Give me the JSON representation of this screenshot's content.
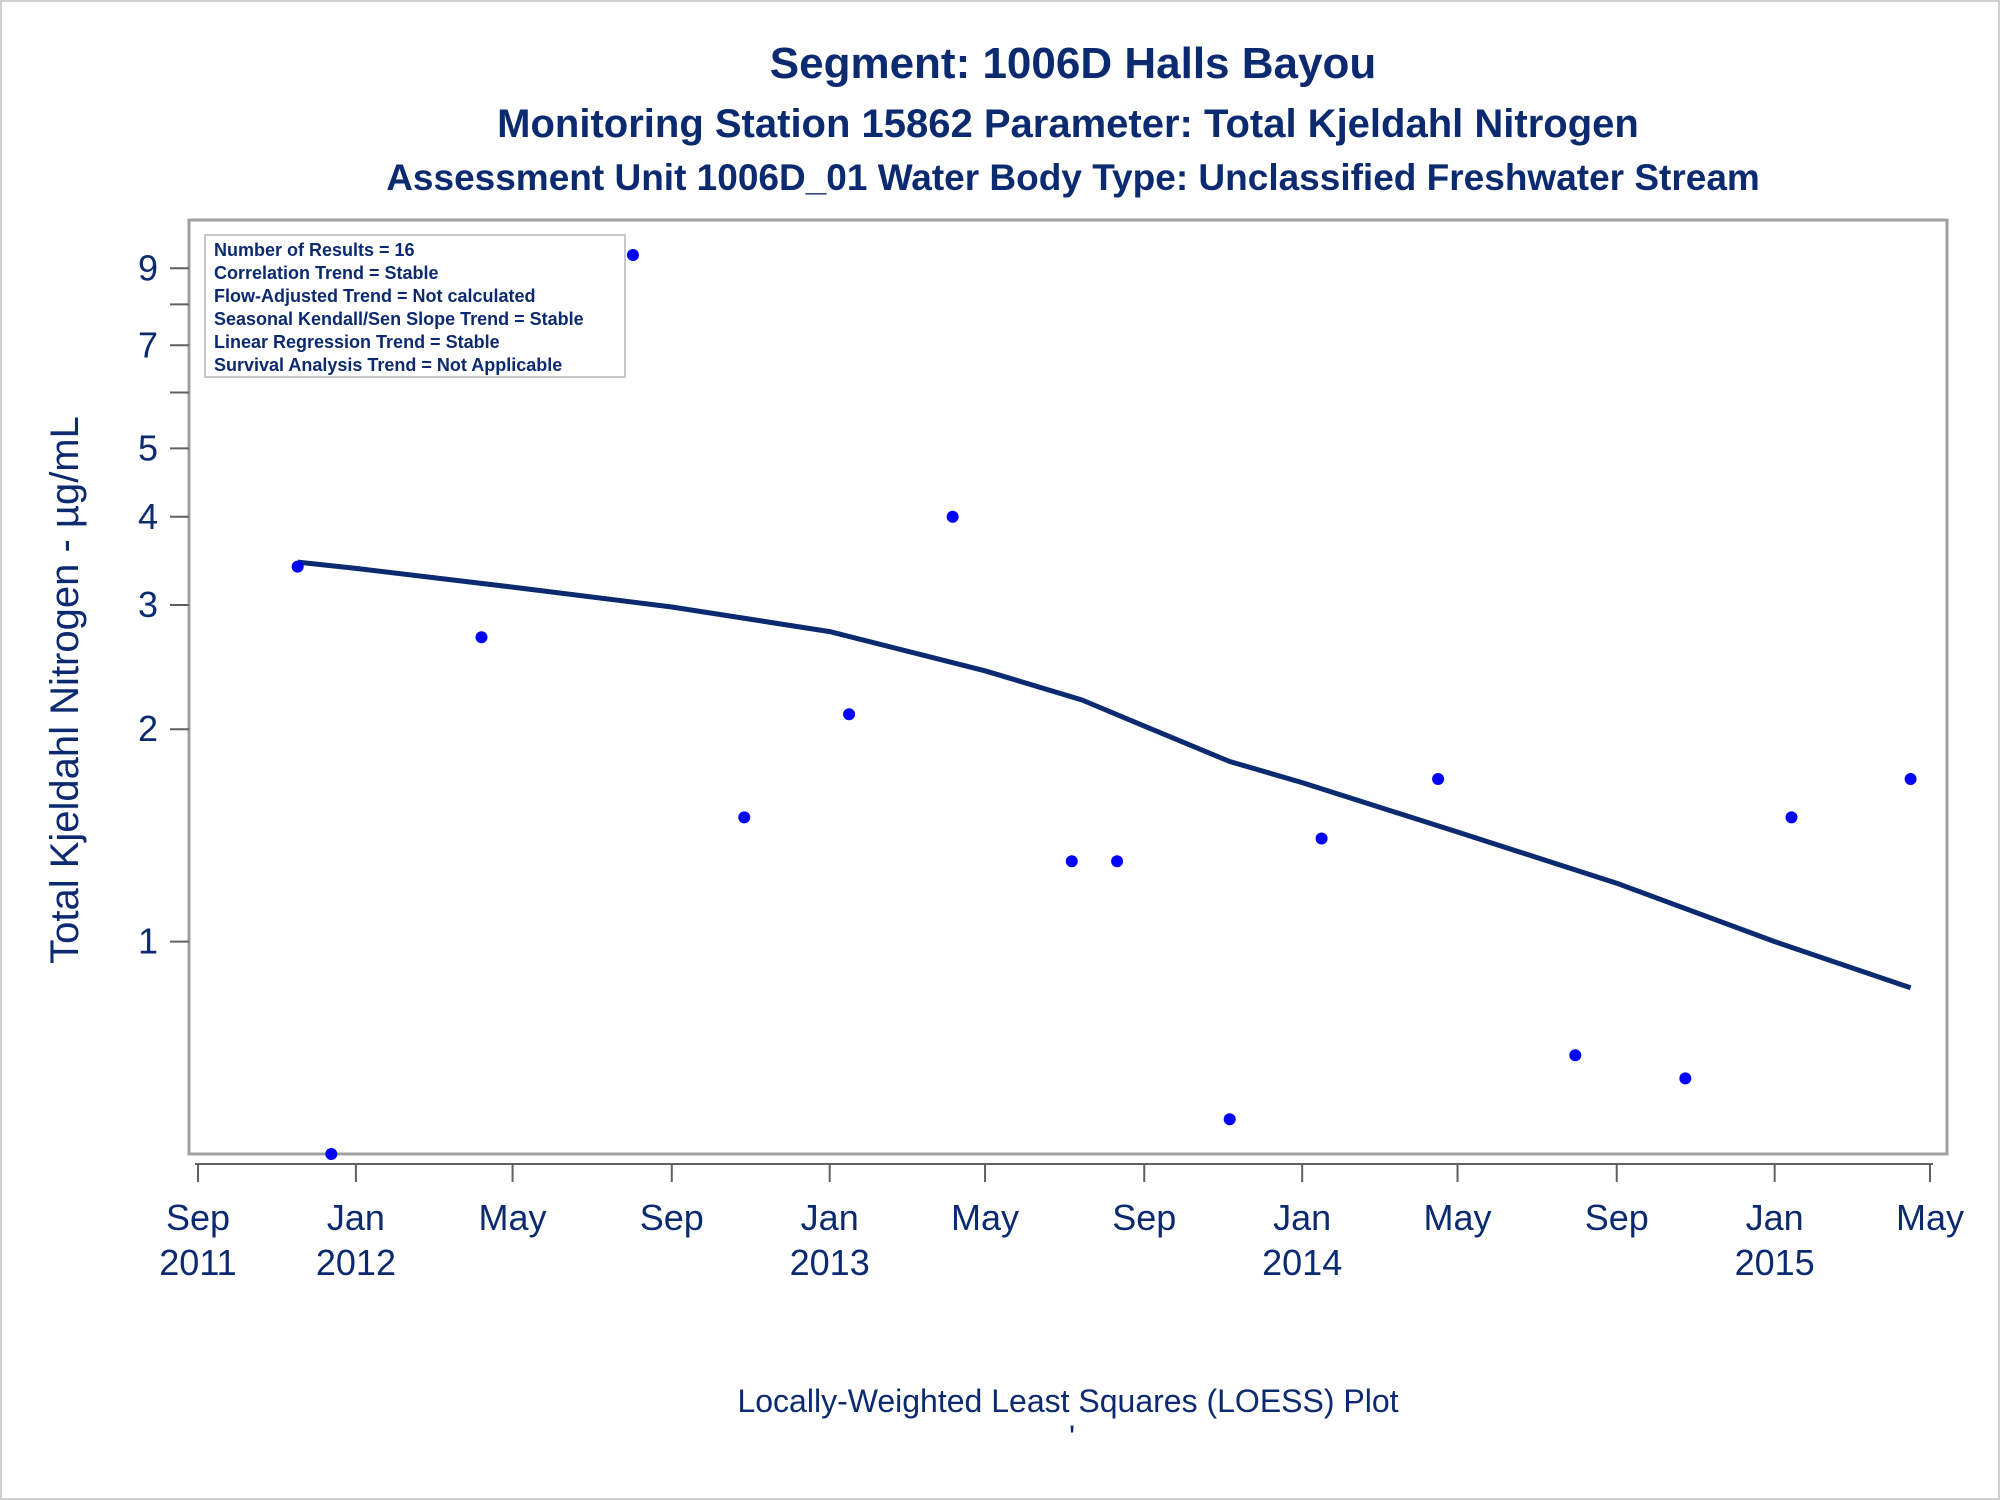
{
  "titles": {
    "line1": "Segment: 1006D  Halls Bayou",
    "line2": "Monitoring Station 15862 Parameter: Total Kjeldahl Nitrogen",
    "line3": "Assessment Unit 1006D_01   Water Body Type: Unclassified Freshwater Stream"
  },
  "footnote": "Locally-Weighted Least Squares (LOESS) Plot",
  "footnote_mark": "'",
  "info_box": [
    "Number of Results = 16",
    "Correlation Trend = Stable",
    "Flow-Adjusted Trend = Not calculated",
    "Seasonal Kendall/Sen Slope Trend = Stable",
    "Linear Regression Trend = Stable",
    "Survival Analysis Trend = Not Applicable"
  ],
  "colors": {
    "text": "#0b2a6f",
    "points": "#0000ff",
    "loess": "#0b2a6f",
    "frame": "#a0a0a0"
  },
  "chart_data": {
    "type": "scatter",
    "ylabel": "Total Kjeldahl Nitrogen -  µg/mL",
    "xlabel": "",
    "y_scale": "log",
    "ylim": [
      0.5,
      10.0
    ],
    "xlim": [
      "2011-09-01",
      "2015-05-10"
    ],
    "y_ticks": [
      {
        "value": 1,
        "label": "1"
      },
      {
        "value": 2,
        "label": "2"
      },
      {
        "value": 3,
        "label": "3"
      },
      {
        "value": 4,
        "label": "4"
      },
      {
        "value": 5,
        "label": "5"
      },
      {
        "value": 6,
        "label": ""
      },
      {
        "value": 7,
        "label": "7"
      },
      {
        "value": 8,
        "label": ""
      },
      {
        "value": 9,
        "label": "9"
      }
    ],
    "x_ticks": [
      {
        "date": "2011-09-01",
        "month": "Sep",
        "year": "2011"
      },
      {
        "date": "2012-01-01",
        "month": "Jan",
        "year": "2012"
      },
      {
        "date": "2012-05-01",
        "month": "May",
        "year": ""
      },
      {
        "date": "2012-09-01",
        "month": "Sep",
        "year": ""
      },
      {
        "date": "2013-01-01",
        "month": "Jan",
        "year": "2013"
      },
      {
        "date": "2013-05-01",
        "month": "May",
        "year": ""
      },
      {
        "date": "2013-09-01",
        "month": "Sep",
        "year": ""
      },
      {
        "date": "2014-01-01",
        "month": "Jan",
        "year": "2014"
      },
      {
        "date": "2014-05-01",
        "month": "May",
        "year": ""
      },
      {
        "date": "2014-09-01",
        "month": "Sep",
        "year": ""
      },
      {
        "date": "2015-01-01",
        "month": "Jan",
        "year": "2015"
      },
      {
        "date": "2015-05-01",
        "month": "May",
        "year": ""
      }
    ],
    "series": [
      {
        "kind": "points",
        "points": [
          {
            "x": "2011-11-17",
            "y": 3.4
          },
          {
            "x": "2011-12-13",
            "y": 0.5
          },
          {
            "x": "2012-04-07",
            "y": 2.7
          },
          {
            "x": "2012-08-02",
            "y": 9.4
          },
          {
            "x": "2012-10-27",
            "y": 1.5
          },
          {
            "x": "2013-01-16",
            "y": 2.1
          },
          {
            "x": "2013-04-06",
            "y": 4.0
          },
          {
            "x": "2013-07-07",
            "y": 1.3
          },
          {
            "x": "2013-08-11",
            "y": 1.3
          },
          {
            "x": "2013-11-06",
            "y": 0.56
          },
          {
            "x": "2014-01-16",
            "y": 1.4
          },
          {
            "x": "2014-04-16",
            "y": 1.7
          },
          {
            "x": "2014-07-31",
            "y": 0.69
          },
          {
            "x": "2014-10-24",
            "y": 0.64
          },
          {
            "x": "2015-01-14",
            "y": 1.5
          },
          {
            "x": "2015-04-16",
            "y": 1.7
          }
        ]
      },
      {
        "kind": "loess",
        "points": [
          {
            "x": "2011-11-17",
            "y": 3.45
          },
          {
            "x": "2012-01-01",
            "y": 3.38
          },
          {
            "x": "2012-05-01",
            "y": 3.18
          },
          {
            "x": "2012-09-01",
            "y": 2.98
          },
          {
            "x": "2013-01-01",
            "y": 2.75
          },
          {
            "x": "2013-05-01",
            "y": 2.42
          },
          {
            "x": "2013-07-15",
            "y": 2.2
          },
          {
            "x": "2013-09-01",
            "y": 2.02
          },
          {
            "x": "2013-11-06",
            "y": 1.8
          },
          {
            "x": "2014-01-01",
            "y": 1.68
          },
          {
            "x": "2014-05-01",
            "y": 1.43
          },
          {
            "x": "2014-09-01",
            "y": 1.21
          },
          {
            "x": "2015-01-01",
            "y": 1.0
          },
          {
            "x": "2015-04-16",
            "y": 0.86
          }
        ]
      }
    ]
  }
}
